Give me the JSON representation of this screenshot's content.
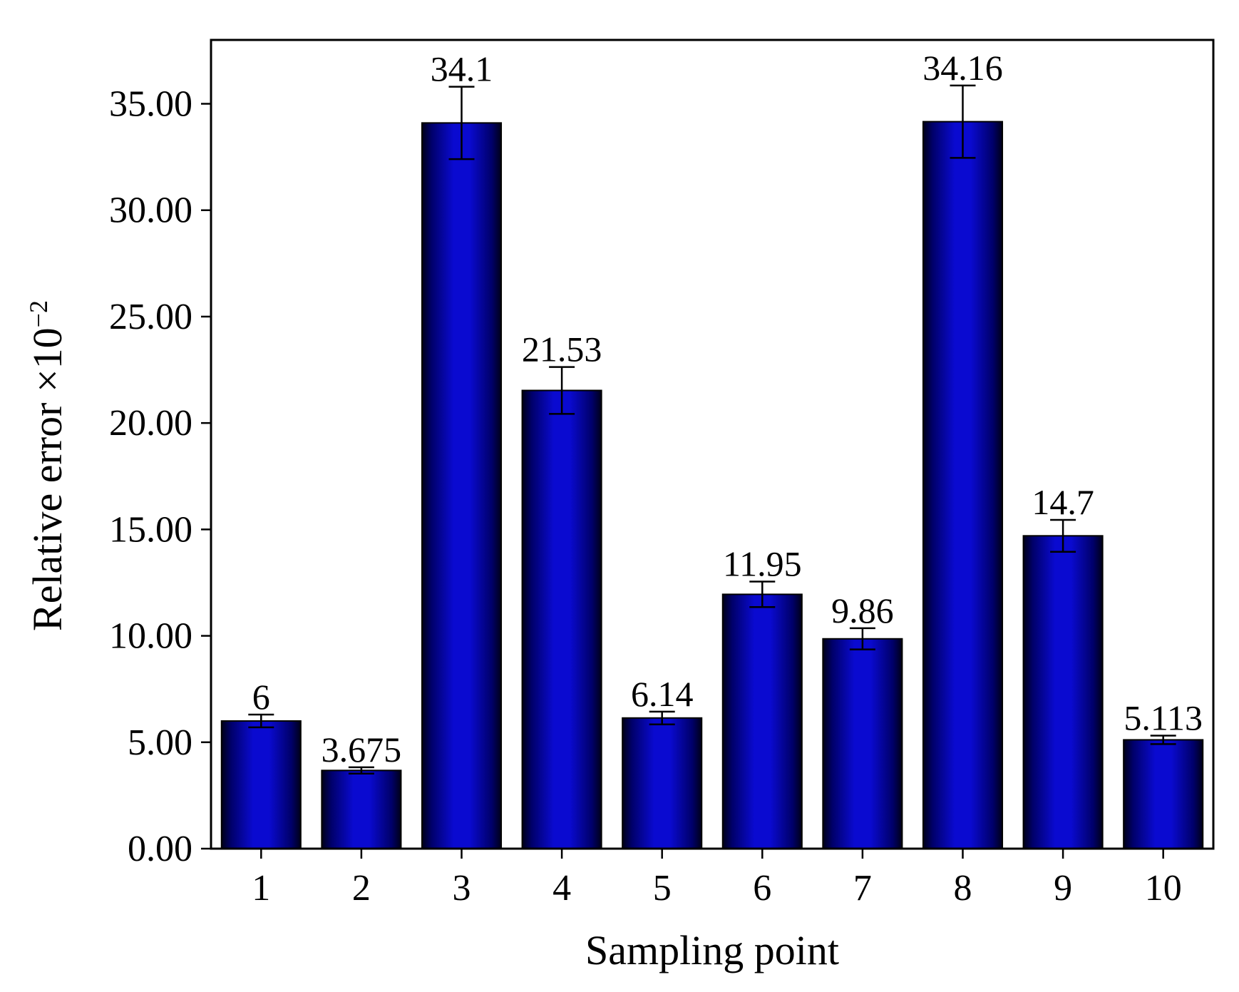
{
  "chart_data": {
    "type": "bar",
    "categories": [
      "1",
      "2",
      "3",
      "4",
      "5",
      "6",
      "7",
      "8",
      "9",
      "10"
    ],
    "values": [
      6,
      3.675,
      34.1,
      21.53,
      6.14,
      11.95,
      9.86,
      34.16,
      14.7,
      5.113
    ],
    "value_labels": [
      "6",
      "3.675",
      "34.1",
      "21.53",
      "6.14",
      "11.95",
      "9.86",
      "34.16",
      "14.7",
      "5.113"
    ],
    "error_bars": [
      0.3,
      0.15,
      1.7,
      1.1,
      0.3,
      0.6,
      0.5,
      1.7,
      0.75,
      0.2
    ],
    "xlabel": "Sampling point",
    "ylabel": "Relative error ×10",
    "ylabel_exponent": "−2",
    "ylim": [
      0,
      38
    ],
    "yticks": [
      0,
      5,
      10,
      15,
      20,
      25,
      30,
      35
    ],
    "ytick_labels": [
      "0.00",
      "5.00",
      "10.00",
      "15.00",
      "20.00",
      "25.00",
      "30.00",
      "35.00"
    ],
    "grid": false,
    "bar_color": "#0a0ad0",
    "bar_edge_color": "#000000"
  }
}
